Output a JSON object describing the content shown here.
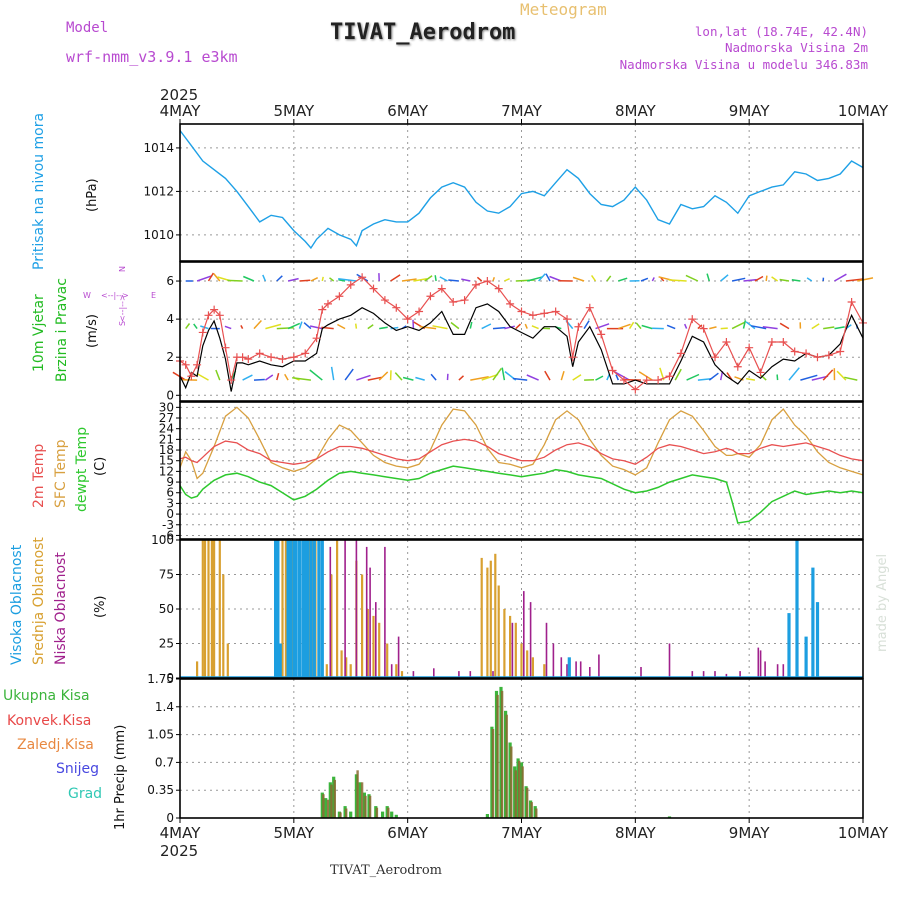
{
  "header": {
    "model_label": "Model",
    "model_name": "wrf-nmm_v3.9.1 e3km",
    "app_title": "Meteogram",
    "station_title": "TIVAT_Aerodrom",
    "coords": "lon,lat (18.74E, 42.4N)",
    "elevation": "Nadmorska Visina 2m",
    "model_elevation": "Nadmorska Visina u modelu 346.83m",
    "footer_station": "TIVAT_Aerodrom",
    "credit": "made by Angel",
    "year_top": "2025",
    "year_bottom": "2025"
  },
  "colors": {
    "pressure": "#1ea0e6",
    "wind_label": "#22bb22",
    "temp2m": "#e85050",
    "sfc": "#d8a040",
    "dewpt": "#2ec82e",
    "high_cloud": "#1c9ee0",
    "mid_cloud": "#d8a030",
    "low_cloud": "#a0208c",
    "total_precip": "#3cb43c",
    "conv_precip": "#e84848",
    "frozen": "#e88840",
    "snow": "#4848e0",
    "hail": "#30c8b4",
    "header_purple": "#b84ad0",
    "header_gold": "#e8c070",
    "credit_gray": "#d8e0d8"
  },
  "time_axis": {
    "start_day": 4,
    "end_day": 10,
    "labels": [
      "4MAY",
      "5MAY",
      "6MAY",
      "7MAY",
      "8MAY",
      "9MAY",
      "10MAY"
    ]
  },
  "chart_data": [
    {
      "type": "line",
      "name": "pressure",
      "title": "Pritisak na nivou mora",
      "ylabel": "(hPa)",
      "ylim": [
        1008.8,
        1015.1
      ],
      "yticks": [
        1010,
        1012,
        1014
      ],
      "x_days": [
        4.0,
        4.1,
        4.2,
        4.3,
        4.4,
        4.5,
        4.6,
        4.7,
        4.8,
        4.9,
        5.0,
        5.1,
        5.15,
        5.2,
        5.3,
        5.4,
        5.5,
        5.55,
        5.6,
        5.7,
        5.8,
        5.9,
        6.0,
        6.1,
        6.2,
        6.3,
        6.4,
        6.5,
        6.6,
        6.7,
        6.8,
        6.9,
        7.0,
        7.1,
        7.2,
        7.3,
        7.4,
        7.5,
        7.6,
        7.7,
        7.8,
        7.9,
        8.0,
        8.1,
        8.2,
        8.3,
        8.4,
        8.5,
        8.6,
        8.7,
        8.8,
        8.9,
        9.0,
        9.1,
        9.2,
        9.3,
        9.4,
        9.5,
        9.6,
        9.7,
        9.8,
        9.9,
        10.0
      ],
      "values": [
        1014.8,
        1014.1,
        1013.4,
        1013.0,
        1012.6,
        1012.0,
        1011.3,
        1010.6,
        1010.9,
        1010.8,
        1010.2,
        1009.7,
        1009.4,
        1009.8,
        1010.3,
        1010.0,
        1009.8,
        1009.5,
        1010.2,
        1010.5,
        1010.7,
        1010.6,
        1010.6,
        1011.0,
        1011.7,
        1012.2,
        1012.4,
        1012.2,
        1011.5,
        1011.1,
        1011.0,
        1011.3,
        1011.9,
        1012.0,
        1011.8,
        1012.4,
        1013.0,
        1012.6,
        1011.9,
        1011.4,
        1011.3,
        1011.6,
        1012.2,
        1011.6,
        1010.7,
        1010.5,
        1011.4,
        1011.2,
        1011.3,
        1011.8,
        1011.5,
        1011.0,
        1011.8,
        1012.0,
        1012.2,
        1012.3,
        1012.9,
        1012.8,
        1012.5,
        1012.6,
        1012.8,
        1013.4,
        1013.1
      ]
    },
    {
      "type": "line",
      "name": "wind",
      "title_lines": [
        "10m Vjetar",
        "Brzina i Pravac"
      ],
      "ylabel": "(m/s)",
      "compass": {
        "north": "N",
        "south": "S",
        "west": "W",
        "east": "E",
        "arrow": "<--|-->"
      },
      "ylim": [
        -0.3,
        7.0
      ],
      "yticks": [
        0,
        2,
        4,
        6
      ],
      "x_days": [
        4.0,
        4.05,
        4.1,
        4.15,
        4.2,
        4.25,
        4.3,
        4.35,
        4.4,
        4.45,
        4.5,
        4.55,
        4.6,
        4.7,
        4.8,
        4.9,
        5.0,
        5.1,
        5.2,
        5.25,
        5.3,
        5.4,
        5.5,
        5.6,
        5.7,
        5.8,
        5.9,
        6.0,
        6.1,
        6.2,
        6.3,
        6.4,
        6.5,
        6.6,
        6.7,
        6.8,
        6.9,
        7.0,
        7.1,
        7.2,
        7.3,
        7.4,
        7.45,
        7.5,
        7.6,
        7.7,
        7.8,
        7.9,
        8.0,
        8.1,
        8.2,
        8.3,
        8.4,
        8.5,
        8.6,
        8.7,
        8.8,
        8.9,
        9.0,
        9.1,
        9.2,
        9.3,
        9.4,
        9.5,
        9.6,
        9.7,
        9.8,
        9.9,
        10.0
      ],
      "gust": [
        1.8,
        1.6,
        1.0,
        1.6,
        3.3,
        4.2,
        4.5,
        4.2,
        2.5,
        0.8,
        2.0,
        2.0,
        1.9,
        2.2,
        2.0,
        1.9,
        2.0,
        2.2,
        3.0,
        4.5,
        4.8,
        5.2,
        5.8,
        6.2,
        5.6,
        5.0,
        4.6,
        4.0,
        4.4,
        5.2,
        5.6,
        4.9,
        5.0,
        5.8,
        6.0,
        5.6,
        4.8,
        4.4,
        4.2,
        4.3,
        4.4,
        4.0,
        2.0,
        3.6,
        4.6,
        3.2,
        1.3,
        0.8,
        0.3,
        0.8,
        0.8,
        1.0,
        2.2,
        4.0,
        3.5,
        2.0,
        2.8,
        1.5,
        2.5,
        1.2,
        2.8,
        2.8,
        2.3,
        2.2,
        2.0,
        2.1,
        2.3,
        4.9,
        3.8
      ],
      "speed": [
        1.0,
        0.4,
        1.2,
        1.0,
        2.6,
        3.4,
        3.9,
        3.0,
        1.9,
        0.2,
        1.7,
        1.7,
        1.6,
        1.8,
        1.6,
        1.5,
        1.8,
        1.8,
        2.2,
        3.5,
        3.7,
        4.0,
        4.2,
        4.6,
        4.3,
        3.8,
        3.4,
        3.6,
        3.4,
        3.8,
        4.4,
        3.2,
        3.2,
        4.6,
        4.8,
        4.4,
        3.6,
        3.3,
        3.0,
        3.6,
        3.6,
        3.1,
        1.5,
        2.8,
        3.6,
        2.4,
        0.6,
        0.6,
        0.8,
        0.6,
        0.6,
        0.6,
        1.8,
        3.1,
        2.8,
        1.6,
        1.0,
        0.6,
        1.3,
        0.9,
        1.5,
        1.9,
        1.8,
        2.2,
        2.0,
        2.1,
        2.7,
        4.2,
        3.0
      ],
      "arrow_bands": [
        6.0,
        3.5,
        0.8
      ]
    },
    {
      "type": "line",
      "name": "temperature",
      "labels": [
        "2m Temp",
        "SFC Temp",
        "dewpt Temp"
      ],
      "ylabel": "(C)",
      "ylim": [
        -7,
        31.5
      ],
      "yticks": [
        -6,
        -3,
        0,
        3,
        6,
        9,
        12,
        15,
        18,
        21,
        24,
        27,
        30
      ],
      "x_days": [
        4.0,
        4.05,
        4.1,
        4.15,
        4.2,
        4.3,
        4.4,
        4.5,
        4.6,
        4.7,
        4.8,
        4.9,
        5.0,
        5.1,
        5.2,
        5.3,
        5.4,
        5.5,
        5.6,
        5.7,
        5.8,
        5.9,
        6.0,
        6.1,
        6.2,
        6.3,
        6.4,
        6.5,
        6.6,
        6.7,
        6.8,
        6.9,
        7.0,
        7.1,
        7.2,
        7.3,
        7.4,
        7.5,
        7.6,
        7.7,
        7.8,
        7.9,
        8.0,
        8.1,
        8.2,
        8.3,
        8.4,
        8.5,
        8.6,
        8.7,
        8.8,
        8.85,
        8.9,
        9.0,
        9.1,
        9.2,
        9.3,
        9.4,
        9.5,
        9.6,
        9.7,
        9.8,
        9.9,
        10.0
      ],
      "t2m": [
        15.5,
        16.0,
        15.0,
        14.5,
        16.0,
        19.0,
        20.5,
        20.0,
        18.0,
        17.0,
        15.0,
        14.5,
        14.0,
        14.5,
        15.5,
        17.5,
        19.0,
        19.0,
        18.5,
        17.5,
        16.5,
        15.5,
        15.0,
        15.5,
        17.5,
        19.5,
        20.5,
        21.0,
        20.5,
        19.0,
        17.0,
        16.0,
        15.0,
        15.0,
        16.0,
        18.0,
        19.5,
        20.0,
        19.0,
        17.0,
        15.5,
        15.0,
        14.0,
        16.0,
        18.5,
        19.5,
        19.0,
        18.0,
        17.0,
        17.5,
        18.5,
        18.0,
        17.0,
        17.0,
        18.5,
        19.5,
        19.0,
        19.5,
        20.0,
        19.0,
        18.0,
        16.5,
        15.5,
        15.0
      ],
      "sfc": [
        13.0,
        17.5,
        15.0,
        10.0,
        11.5,
        19.0,
        27.5,
        30.0,
        27.0,
        21.0,
        14.5,
        13.0,
        12.0,
        13.0,
        15.5,
        21.0,
        25.0,
        23.5,
        20.0,
        16.5,
        14.5,
        13.5,
        13.0,
        14.0,
        18.0,
        25.0,
        29.5,
        29.0,
        25.0,
        18.5,
        14.5,
        14.0,
        13.0,
        14.0,
        19.5,
        26.5,
        29.0,
        26.5,
        21.0,
        16.5,
        13.5,
        12.5,
        11.0,
        13.0,
        20.0,
        26.5,
        29.0,
        27.5,
        23.5,
        19.0,
        16.5,
        16.5,
        17.0,
        16.0,
        19.5,
        26.5,
        29.5,
        25.0,
        22.0,
        17.5,
        14.5,
        13.0,
        12.0,
        11.0
      ],
      "dewpt": [
        8.0,
        5.5,
        4.5,
        5.0,
        7.0,
        9.5,
        11.0,
        11.5,
        10.5,
        9.0,
        8.0,
        6.0,
        4.0,
        5.0,
        7.0,
        9.5,
        11.5,
        12.0,
        11.5,
        11.0,
        10.5,
        10.0,
        9.5,
        10.0,
        11.5,
        12.5,
        13.5,
        13.0,
        12.5,
        12.0,
        11.5,
        11.0,
        10.5,
        11.0,
        11.5,
        12.5,
        12.0,
        11.0,
        10.5,
        10.0,
        8.5,
        7.0,
        6.0,
        6.5,
        7.5,
        9.0,
        10.0,
        11.0,
        10.5,
        10.0,
        9.0,
        3.5,
        -2.5,
        -2.0,
        0.5,
        3.5,
        5.0,
        6.5,
        5.5,
        6.0,
        6.5,
        6.0,
        6.5,
        6.0
      ]
    },
    {
      "type": "bar",
      "name": "cloud",
      "labels": [
        "Visoka Oblacnost",
        "Srednja Oblacnost",
        "Niska Oblacnost"
      ],
      "ylabel": "(%)",
      "ylim": [
        0,
        100
      ],
      "yticks": [
        0,
        25,
        50,
        75,
        100
      ],
      "high": [
        [
          4.84,
          100
        ],
        [
          4.86,
          100
        ],
        [
          4.88,
          25
        ],
        [
          4.95,
          100
        ],
        [
          4.97,
          100
        ],
        [
          5.0,
          100
        ],
        [
          5.02,
          100
        ],
        [
          5.05,
          100
        ],
        [
          5.08,
          100
        ],
        [
          5.1,
          100
        ],
        [
          5.12,
          100
        ],
        [
          5.15,
          100
        ],
        [
          5.18,
          100
        ],
        [
          5.22,
          100
        ],
        [
          5.25,
          100
        ],
        [
          7.42,
          15
        ],
        [
          9.35,
          47
        ],
        [
          9.42,
          100
        ],
        [
          9.5,
          30
        ],
        [
          9.56,
          80
        ],
        [
          9.6,
          55
        ]
      ],
      "mid": [
        [
          4.15,
          12
        ],
        [
          4.2,
          100
        ],
        [
          4.22,
          100
        ],
        [
          4.25,
          100
        ],
        [
          4.28,
          100
        ],
        [
          4.3,
          100
        ],
        [
          4.35,
          100
        ],
        [
          4.38,
          75
        ],
        [
          4.42,
          25
        ],
        [
          4.9,
          100
        ],
        [
          4.93,
          100
        ],
        [
          4.96,
          100
        ],
        [
          4.99,
          100
        ],
        [
          5.02,
          95
        ],
        [
          5.05,
          100
        ],
        [
          5.08,
          100
        ],
        [
          5.11,
          95
        ],
        [
          5.13,
          100
        ],
        [
          5.16,
          100
        ],
        [
          5.19,
          100
        ],
        [
          5.22,
          95
        ],
        [
          5.25,
          50
        ],
        [
          5.29,
          10
        ],
        [
          5.33,
          75
        ],
        [
          5.38,
          100
        ],
        [
          5.42,
          20
        ],
        [
          5.46,
          15
        ],
        [
          5.5,
          10
        ],
        [
          5.55,
          85
        ],
        [
          5.6,
          75
        ],
        [
          5.65,
          50
        ],
        [
          5.7,
          45
        ],
        [
          5.75,
          40
        ],
        [
          5.82,
          25
        ],
        [
          5.9,
          10
        ],
        [
          5.95,
          5
        ],
        [
          6.65,
          87
        ],
        [
          6.7,
          80
        ],
        [
          6.73,
          85
        ],
        [
          6.77,
          90
        ],
        [
          6.8,
          67
        ],
        [
          6.85,
          50
        ],
        [
          6.9,
          45
        ],
        [
          6.95,
          40
        ],
        [
          7.0,
          25
        ],
        [
          7.05,
          20
        ],
        [
          7.1,
          15
        ],
        [
          7.2,
          10
        ]
      ],
      "low": [
        [
          5.32,
          95
        ],
        [
          5.45,
          100
        ],
        [
          5.55,
          100
        ],
        [
          5.64,
          95
        ],
        [
          5.67,
          80
        ],
        [
          5.72,
          55
        ],
        [
          5.8,
          95
        ],
        [
          5.86,
          10
        ],
        [
          5.92,
          30
        ],
        [
          6.05,
          5
        ],
        [
          6.23,
          7
        ],
        [
          6.45,
          5
        ],
        [
          6.55,
          5
        ],
        [
          6.75,
          5
        ],
        [
          6.92,
          40
        ],
        [
          7.02,
          63
        ],
        [
          7.08,
          55
        ],
        [
          7.22,
          40
        ],
        [
          7.28,
          25
        ],
        [
          7.35,
          15
        ],
        [
          7.4,
          10
        ],
        [
          7.48,
          12
        ],
        [
          7.52,
          12
        ],
        [
          7.6,
          8
        ],
        [
          7.68,
          17
        ],
        [
          8.05,
          8
        ],
        [
          8.3,
          25
        ],
        [
          8.5,
          5
        ],
        [
          8.6,
          5
        ],
        [
          8.7,
          5
        ],
        [
          8.8,
          3
        ],
        [
          8.92,
          5
        ],
        [
          9.08,
          22
        ],
        [
          9.1,
          20
        ],
        [
          9.14,
          12
        ],
        [
          9.25,
          10
        ],
        [
          9.3,
          10
        ]
      ]
    },
    {
      "type": "bar",
      "name": "precip",
      "labels": [
        "Ukupna Kisa",
        "Konvek.Kisa",
        "Zaledj.Kisa",
        "Snijeg",
        "Grad"
      ],
      "ylabel": "1hr Precip (mm)",
      "ylim": [
        0,
        1.75
      ],
      "yticks": [
        0,
        0.35,
        0.7,
        1.05,
        1.4,
        1.75
      ],
      "total": [
        [
          5.25,
          0.32
        ],
        [
          5.28,
          0.25
        ],
        [
          5.32,
          0.45
        ],
        [
          5.35,
          0.52
        ],
        [
          5.4,
          0.08
        ],
        [
          5.45,
          0.15
        ],
        [
          5.5,
          0.08
        ],
        [
          5.55,
          0.55
        ],
        [
          5.58,
          0.45
        ],
        [
          5.62,
          0.32
        ],
        [
          5.66,
          0.3
        ],
        [
          5.72,
          0.15
        ],
        [
          5.78,
          0.08
        ],
        [
          5.82,
          0.15
        ],
        [
          5.86,
          0.08
        ],
        [
          5.9,
          0.04
        ],
        [
          6.7,
          0.05
        ],
        [
          6.74,
          1.15
        ],
        [
          6.78,
          1.6
        ],
        [
          6.82,
          1.65
        ],
        [
          6.86,
          1.35
        ],
        [
          6.9,
          0.95
        ],
        [
          6.94,
          0.65
        ],
        [
          6.97,
          0.75
        ],
        [
          7.0,
          0.7
        ],
        [
          7.04,
          0.4
        ],
        [
          7.08,
          0.22
        ],
        [
          7.12,
          0.15
        ],
        [
          8.3,
          0.02
        ]
      ],
      "conv": [
        [
          5.26,
          0.3
        ],
        [
          5.3,
          0.23
        ],
        [
          5.33,
          0.42
        ],
        [
          5.36,
          0.48
        ],
        [
          5.41,
          0.07
        ],
        [
          5.46,
          0.12
        ],
        [
          5.56,
          0.6
        ],
        [
          5.6,
          0.45
        ],
        [
          5.63,
          0.28
        ],
        [
          5.67,
          0.28
        ],
        [
          5.73,
          0.13
        ],
        [
          5.83,
          0.13
        ],
        [
          6.75,
          1.12
        ],
        [
          6.79,
          1.55
        ],
        [
          6.83,
          1.6
        ],
        [
          6.87,
          1.3
        ],
        [
          6.91,
          0.9
        ],
        [
          6.95,
          0.6
        ],
        [
          6.98,
          0.72
        ],
        [
          7.01,
          0.65
        ],
        [
          7.05,
          0.38
        ],
        [
          7.09,
          0.2
        ],
        [
          7.13,
          0.12
        ]
      ]
    }
  ]
}
